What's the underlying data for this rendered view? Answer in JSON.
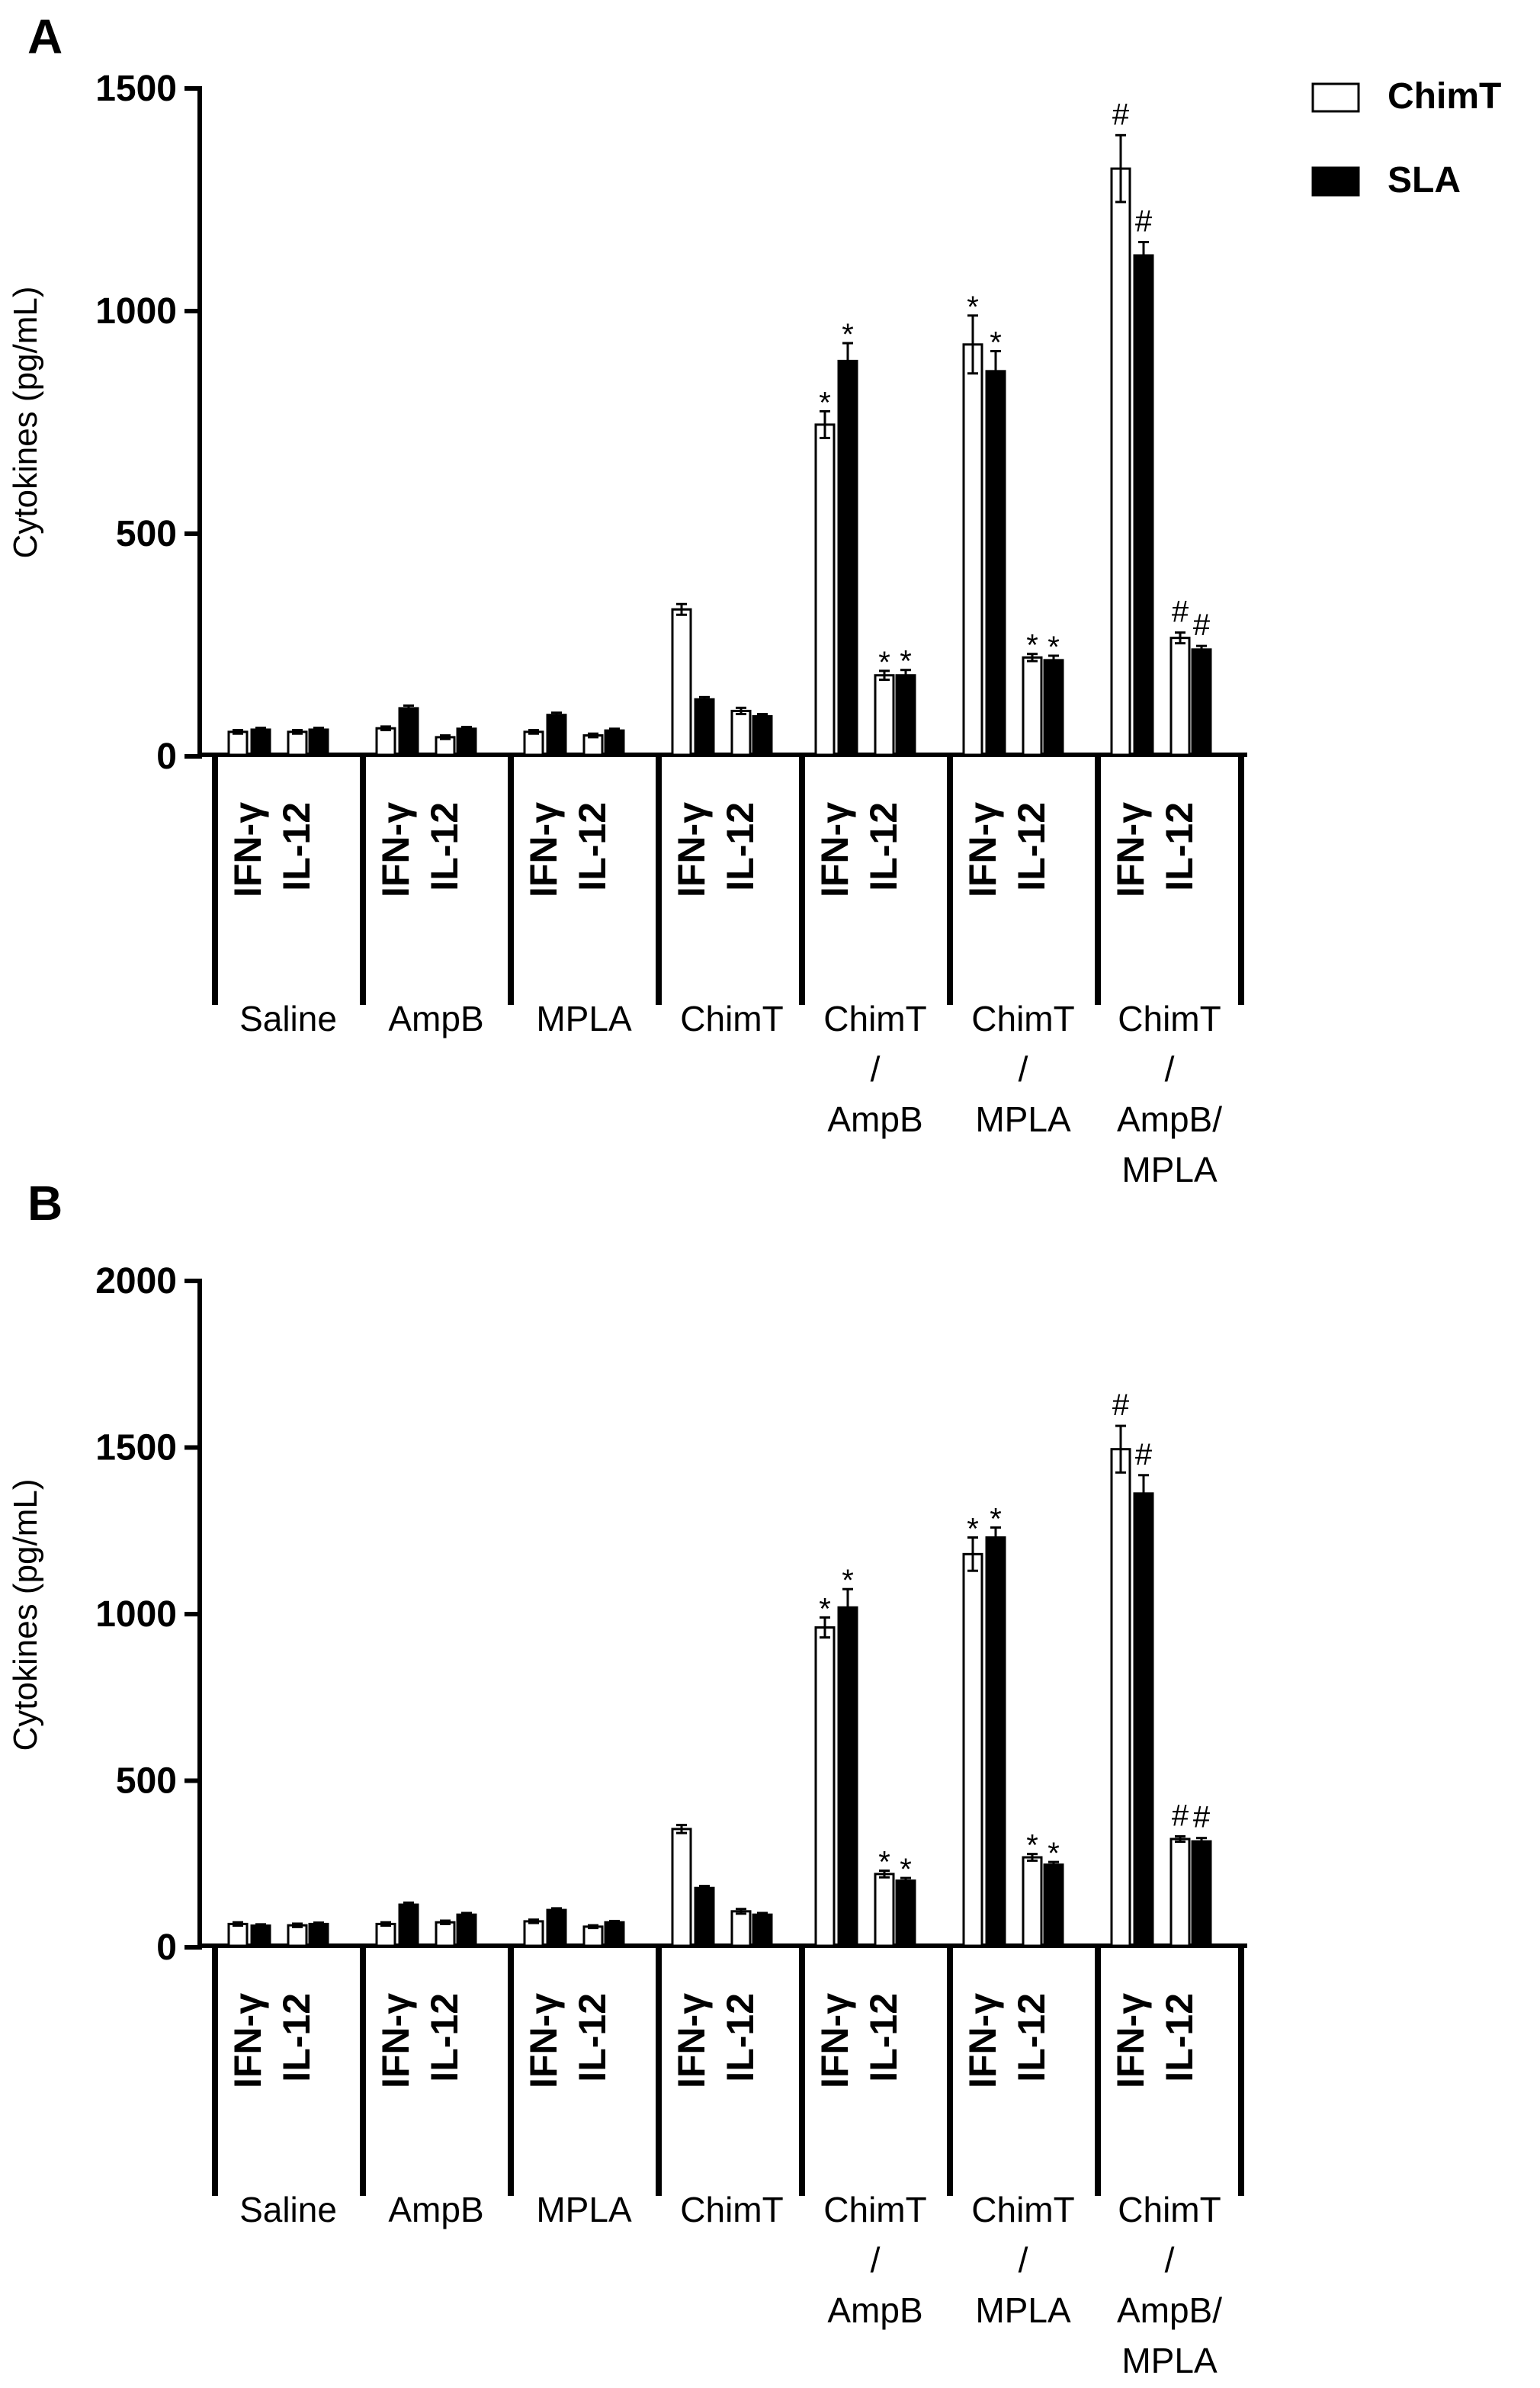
{
  "legend": [
    {
      "name": "ChimT",
      "fill": "#ffffff"
    },
    {
      "name": "SLA",
      "fill": "#000000"
    }
  ],
  "colors": {
    "axis": "#000000",
    "chimt": "#ffffff",
    "sla": "#000000"
  },
  "chart_data": [
    {
      "type": "bar",
      "panel": "A",
      "title": "",
      "xlabel": "",
      "ylabel": "Cytokines (pg/mL)",
      "ylim": [
        0,
        1500
      ],
      "yticks": [
        0,
        500,
        1000,
        1500
      ],
      "groups": [
        {
          "label": [
            "Saline"
          ],
          "subgroups": [
            {
              "label": "IFN-γ",
              "values": [
                55,
                60
              ],
              "errors": [
                4,
                4
              ],
              "sig": [
                "",
                ""
              ]
            },
            {
              "label": "IL-12",
              "values": [
                55,
                60
              ],
              "errors": [
                4,
                4
              ],
              "sig": [
                "",
                ""
              ]
            }
          ]
        },
        {
          "label": [
            "AmpB"
          ],
          "subgroups": [
            {
              "label": "IFN-γ",
              "values": [
                63,
                108
              ],
              "errors": [
                4,
                6
              ],
              "sig": [
                "",
                ""
              ]
            },
            {
              "label": "IL-12",
              "values": [
                43,
                62
              ],
              "errors": [
                4,
                4
              ],
              "sig": [
                "",
                ""
              ]
            }
          ]
        },
        {
          "label": [
            "MPLA"
          ],
          "subgroups": [
            {
              "label": "IFN-γ",
              "values": [
                55,
                93
              ],
              "errors": [
                4,
                5
              ],
              "sig": [
                "",
                ""
              ]
            },
            {
              "label": "IL-12",
              "values": [
                47,
                58
              ],
              "errors": [
                4,
                4
              ],
              "sig": [
                "",
                ""
              ]
            }
          ]
        },
        {
          "label": [
            "ChimT"
          ],
          "subgroups": [
            {
              "label": "IFN-γ",
              "values": [
                330,
                128
              ],
              "errors": [
                12,
                5
              ],
              "sig": [
                "",
                ""
              ]
            },
            {
              "label": "IL-12",
              "values": [
                102,
                90
              ],
              "errors": [
                7,
                5
              ],
              "sig": [
                "",
                ""
              ]
            }
          ]
        },
        {
          "label": [
            "ChimT",
            "/",
            "AmpB"
          ],
          "subgroups": [
            {
              "label": "IFN-γ",
              "values": [
                745,
                888
              ],
              "errors": [
                30,
                40
              ],
              "sig": [
                "*",
                "*"
              ]
            },
            {
              "label": "IL-12",
              "values": [
                182,
                182
              ],
              "errors": [
                10,
                12
              ],
              "sig": [
                "*",
                "*"
              ]
            }
          ]
        },
        {
          "label": [
            "ChimT",
            "/",
            "MPLA"
          ],
          "subgroups": [
            {
              "label": "IFN-γ",
              "values": [
                925,
                865
              ],
              "errors": [
                65,
                45
              ],
              "sig": [
                "*",
                "*"
              ]
            },
            {
              "label": "IL-12",
              "values": [
                222,
                216
              ],
              "errors": [
                8,
                10
              ],
              "sig": [
                "*",
                "*"
              ]
            }
          ]
        },
        {
          "label": [
            "ChimT",
            "/",
            "AmpB/",
            "MPLA"
          ],
          "subgroups": [
            {
              "label": "IFN-γ",
              "values": [
                1320,
                1125
              ],
              "errors": [
                75,
                30
              ],
              "sig": [
                "#",
                "#"
              ]
            },
            {
              "label": "IL-12",
              "values": [
                266,
                240
              ],
              "errors": [
                12,
                8
              ],
              "sig": [
                "#",
                "#"
              ]
            }
          ]
        }
      ]
    },
    {
      "type": "bar",
      "panel": "B",
      "title": "",
      "xlabel": "",
      "ylabel": "Cytokines (pg/mL)",
      "ylim": [
        0,
        2000
      ],
      "yticks": [
        0,
        500,
        1000,
        1500,
        2000
      ],
      "groups": [
        {
          "label": [
            "Saline"
          ],
          "subgroups": [
            {
              "label": "IFN-γ",
              "values": [
                70,
                65
              ],
              "errors": [
                5,
                4
              ],
              "sig": [
                "",
                ""
              ]
            },
            {
              "label": "IL-12",
              "values": [
                66,
                70
              ],
              "errors": [
                5,
                4
              ],
              "sig": [
                "",
                ""
              ]
            }
          ]
        },
        {
          "label": [
            "AmpB"
          ],
          "subgroups": [
            {
              "label": "IFN-γ",
              "values": [
                70,
                128
              ],
              "errors": [
                5,
                6
              ],
              "sig": [
                "",
                ""
              ]
            },
            {
              "label": "IL-12",
              "values": [
                75,
                98
              ],
              "errors": [
                5,
                5
              ],
              "sig": [
                "",
                ""
              ]
            }
          ]
        },
        {
          "label": [
            "MPLA"
          ],
          "subgroups": [
            {
              "label": "IFN-γ",
              "values": [
                78,
                112
              ],
              "errors": [
                5,
                5
              ],
              "sig": [
                "",
                ""
              ]
            },
            {
              "label": "IL-12",
              "values": [
                62,
                75
              ],
              "errors": [
                4,
                4
              ],
              "sig": [
                "",
                ""
              ]
            }
          ]
        },
        {
          "label": [
            "ChimT"
          ],
          "subgroups": [
            {
              "label": "IFN-γ",
              "values": [
                355,
                178
              ],
              "errors": [
                12,
                6
              ],
              "sig": [
                "",
                ""
              ]
            },
            {
              "label": "IL-12",
              "values": [
                108,
                98
              ],
              "errors": [
                7,
                5
              ],
              "sig": [
                "",
                ""
              ]
            }
          ]
        },
        {
          "label": [
            "ChimT",
            "/",
            "AmpB"
          ],
          "subgroups": [
            {
              "label": "IFN-γ",
              "values": [
                960,
                1020
              ],
              "errors": [
                30,
                55
              ],
              "sig": [
                "*",
                "*"
              ]
            },
            {
              "label": "IL-12",
              "values": [
                220,
                200
              ],
              "errors": [
                10,
                8
              ],
              "sig": [
                "*",
                "*"
              ]
            }
          ]
        },
        {
          "label": [
            "ChimT",
            "/",
            "MPLA"
          ],
          "subgroups": [
            {
              "label": "IFN-γ",
              "values": [
                1180,
                1230
              ],
              "errors": [
                50,
                30
              ],
              "sig": [
                "*",
                "*"
              ]
            },
            {
              "label": "IL-12",
              "values": [
                270,
                248
              ],
              "errors": [
                10,
                8
              ],
              "sig": [
                "*",
                "*"
              ]
            }
          ]
        },
        {
          "label": [
            "ChimT",
            "/",
            "AmpB/",
            "MPLA"
          ],
          "subgroups": [
            {
              "label": "IFN-γ",
              "values": [
                1495,
                1362
              ],
              "errors": [
                70,
                55
              ],
              "sig": [
                "#",
                "#"
              ]
            },
            {
              "label": "IL-12",
              "values": [
                325,
                318
              ],
              "errors": [
                8,
                10
              ],
              "sig": [
                "#",
                "#"
              ]
            }
          ]
        }
      ]
    }
  ]
}
